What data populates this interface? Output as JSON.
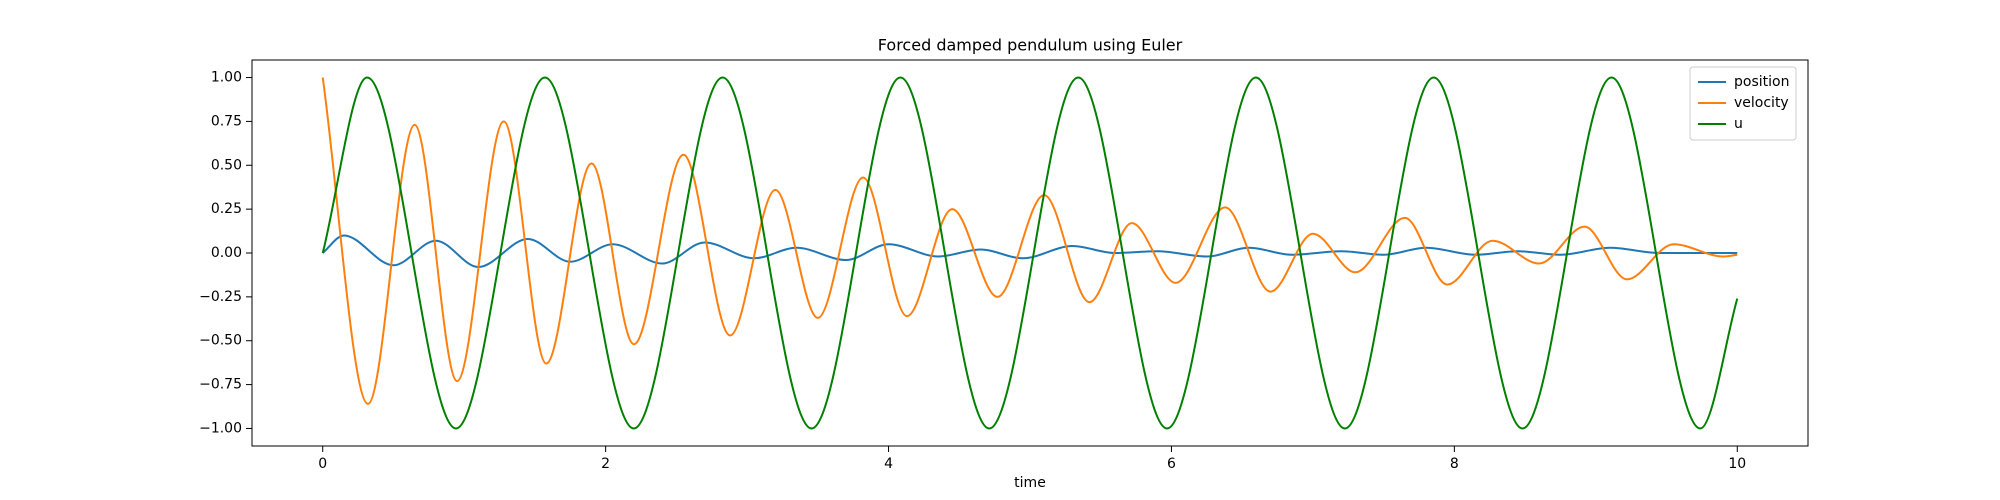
{
  "chart_data": {
    "type": "line",
    "title": "Forced damped pendulum using Euler",
    "xlabel": "time",
    "xlim": [
      -0.5,
      10.5
    ],
    "ylim": [
      -1.1,
      1.1
    ],
    "xticks": [
      0,
      2,
      4,
      6,
      8,
      10
    ],
    "yticks": [
      {
        "value": -1,
        "label": "−1.00"
      },
      {
        "value": -0.75,
        "label": "−0.75"
      },
      {
        "value": -0.5,
        "label": "−0.50"
      },
      {
        "value": -0.25,
        "label": "−0.25"
      },
      {
        "value": 0,
        "label": "0.00"
      },
      {
        "value": 0.25,
        "label": "0.25"
      },
      {
        "value": 0.5,
        "label": "0.50"
      },
      {
        "value": 0.75,
        "label": "0.75"
      },
      {
        "value": 1,
        "label": "1.00"
      }
    ],
    "grid": false,
    "legend": "upper right",
    "series": [
      {
        "name": "position",
        "color": "#1f77b4",
        "x": [
          0,
          0.15,
          0.5,
          0.8,
          1.1,
          1.45,
          1.75,
          2.05,
          2.4,
          2.7,
          3.05,
          3.35,
          3.7,
          4.0,
          4.35,
          4.65,
          4.95,
          5.3,
          5.6,
          5.9,
          6.25,
          6.55,
          6.85,
          7.2,
          7.5,
          7.8,
          8.15,
          8.45,
          8.75,
          9.1,
          9.45,
          10
        ],
        "values": [
          0,
          0.1,
          -0.07,
          0.07,
          -0.08,
          0.08,
          -0.05,
          0.05,
          -0.06,
          0.06,
          -0.03,
          0.03,
          -0.04,
          0.05,
          -0.02,
          0.02,
          -0.03,
          0.04,
          0.0,
          0.01,
          -0.02,
          0.03,
          -0.01,
          0.01,
          -0.01,
          0.03,
          -0.01,
          0.01,
          -0.01,
          0.03,
          0.0,
          0.0
        ]
      },
      {
        "name": "velocity",
        "color": "#ff7f0e",
        "x": [
          0,
          0.32,
          0.65,
          0.95,
          1.28,
          1.58,
          1.9,
          2.2,
          2.55,
          2.88,
          3.2,
          3.5,
          3.82,
          4.13,
          4.45,
          4.77,
          5.1,
          5.42,
          5.72,
          6.03,
          6.38,
          6.7,
          7.0,
          7.3,
          7.65,
          7.95,
          8.27,
          8.6,
          8.92,
          9.22,
          9.55,
          9.9,
          10
        ],
        "values": [
          1,
          -0.86,
          0.73,
          -0.73,
          0.75,
          -0.63,
          0.51,
          -0.52,
          0.56,
          -0.47,
          0.36,
          -0.37,
          0.43,
          -0.36,
          0.25,
          -0.25,
          0.33,
          -0.28,
          0.17,
          -0.17,
          0.26,
          -0.22,
          0.11,
          -0.11,
          0.2,
          -0.18,
          0.07,
          -0.06,
          0.15,
          -0.15,
          0.05,
          -0.02,
          -0.01
        ]
      },
      {
        "name": "u",
        "color": "#008000",
        "x": [
          0,
          0.314,
          0.942,
          1.571,
          2.199,
          2.827,
          3.456,
          4.084,
          4.712,
          5.341,
          5.969,
          6.597,
          7.226,
          7.854,
          8.482,
          9.111,
          9.739,
          10
        ],
        "values": [
          0,
          1,
          -1,
          1,
          -1,
          1,
          -1,
          1,
          -1,
          1,
          -1,
          1,
          -1,
          1,
          -1,
          1,
          -1,
          -0.26
        ]
      }
    ]
  }
}
